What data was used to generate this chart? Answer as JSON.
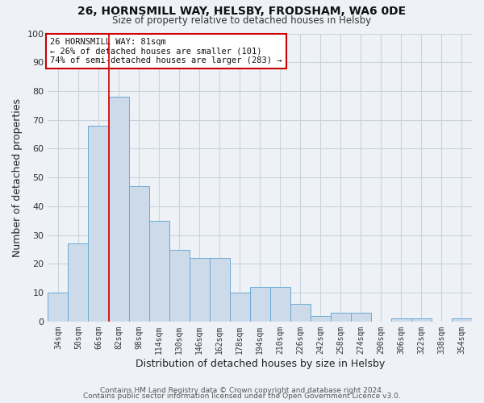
{
  "title": "26, HORNSMILL WAY, HELSBY, FRODSHAM, WA6 0DE",
  "subtitle": "Size of property relative to detached houses in Helsby",
  "xlabel": "Distribution of detached houses by size in Helsby",
  "ylabel": "Number of detached properties",
  "bar_color": "#ccdaea",
  "bar_edge_color": "#6aaad4",
  "grid_color": "#c8d4dc",
  "background_color": "#eef2f7",
  "categories": [
    "34sqm",
    "50sqm",
    "66sqm",
    "82sqm",
    "98sqm",
    "114sqm",
    "130sqm",
    "146sqm",
    "162sqm",
    "178sqm",
    "194sqm",
    "210sqm",
    "226sqm",
    "242sqm",
    "258sqm",
    "274sqm",
    "290sqm",
    "306sqm",
    "322sqm",
    "338sqm",
    "354sqm"
  ],
  "values": [
    10,
    27,
    68,
    78,
    47,
    35,
    25,
    22,
    22,
    10,
    12,
    12,
    6,
    2,
    3,
    3,
    0,
    1,
    1,
    0,
    1
  ],
  "vline_index": 3,
  "vline_color": "#cc0000",
  "annotation_title": "26 HORNSMILL WAY: 81sqm",
  "annotation_line1": "← 26% of detached houses are smaller (101)",
  "annotation_line2": "74% of semi-detached houses are larger (283) →",
  "annotation_box_color": "#ffffff",
  "annotation_box_edge_color": "#cc0000",
  "ylim": [
    0,
    100
  ],
  "yticks": [
    0,
    10,
    20,
    30,
    40,
    50,
    60,
    70,
    80,
    90,
    100
  ],
  "footer1": "Contains HM Land Registry data © Crown copyright and database right 2024.",
  "footer2": "Contains public sector information licensed under the Open Government Licence v3.0.",
  "figsize": [
    6.0,
    5.0
  ],
  "dpi": 100
}
